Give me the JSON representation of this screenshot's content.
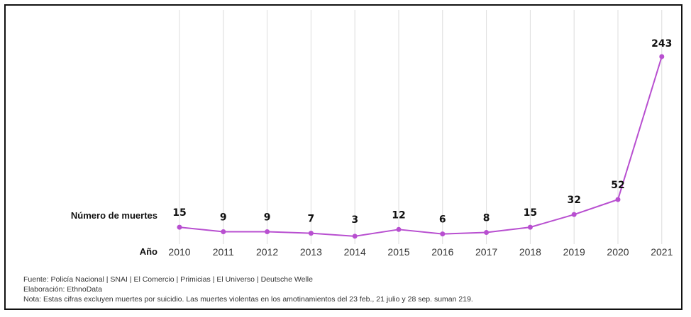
{
  "chart_data": {
    "type": "line",
    "title": "",
    "xlabel": "Año",
    "ylabel": "Número de muertes",
    "categories": [
      "2010",
      "2011",
      "2012",
      "2013",
      "2014",
      "2015",
      "2016",
      "2017",
      "2018",
      "2019",
      "2020",
      "2021"
    ],
    "series": [
      {
        "values": [
          15,
          9,
          9,
          7,
          3,
          12,
          6,
          8,
          15,
          32,
          52,
          243
        ]
      }
    ],
    "ylim": [
      0,
      243
    ],
    "grid": "vertical",
    "line_color": "#b84fd0"
  },
  "footer": {
    "source": "Fuente: Policía Nacional | SNAI | El Comercio | Primicias | El Universo | Deutsche Welle",
    "elaboration": "Elaboración: EthnoData",
    "note": "Nota: Estas cifras excluyen muertes por suicidio. Las muertes violentas en los amotinamientos del 23 feb., 21 julio y 28 sep. suman 219."
  }
}
